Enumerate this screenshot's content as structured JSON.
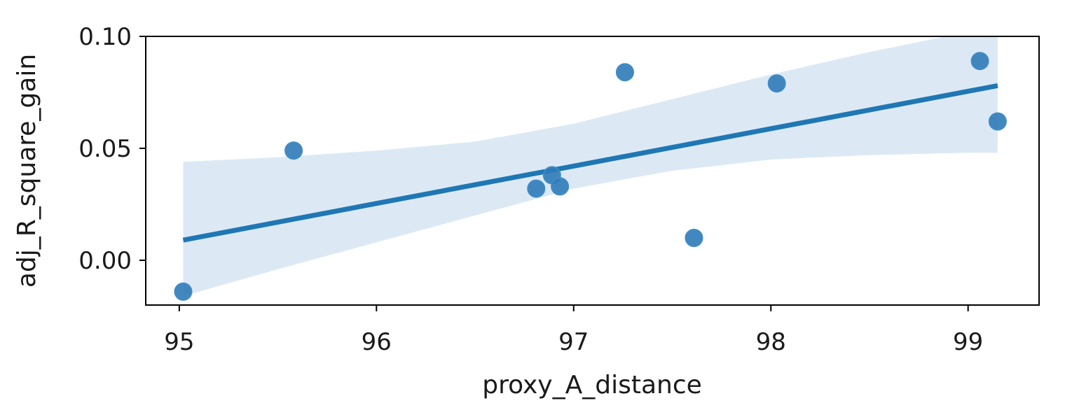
{
  "chart_data": {
    "type": "scatter",
    "xlabel": "proxy_A_distance",
    "ylabel": "adj_R_square_gain",
    "xlim": [
      94.83,
      99.36
    ],
    "ylim": [
      -0.02,
      0.1
    ],
    "xticks": [
      95,
      96,
      97,
      98,
      99
    ],
    "xtick_labels": [
      "95",
      "96",
      "97",
      "98",
      "99"
    ],
    "yticks": [
      0.0,
      0.05,
      0.1
    ],
    "ytick_labels": [
      "0.00",
      "0.05",
      "0.10"
    ],
    "grid": false,
    "points": [
      {
        "x": 95.02,
        "y": -0.014
      },
      {
        "x": 95.58,
        "y": 0.049
      },
      {
        "x": 96.81,
        "y": 0.032
      },
      {
        "x": 96.89,
        "y": 0.038
      },
      {
        "x": 96.93,
        "y": 0.033
      },
      {
        "x": 97.26,
        "y": 0.084
      },
      {
        "x": 97.61,
        "y": 0.01
      },
      {
        "x": 98.03,
        "y": 0.079
      },
      {
        "x": 99.06,
        "y": 0.089
      },
      {
        "x": 99.15,
        "y": 0.062
      }
    ],
    "regression_line": {
      "x": [
        95.02,
        99.15
      ],
      "y": [
        0.009,
        0.078
      ]
    },
    "confidence_band": {
      "x": [
        95.02,
        95.5,
        96.0,
        96.5,
        97.0,
        97.5,
        98.0,
        98.5,
        99.0,
        99.15
      ],
      "lower": [
        -0.016,
        -0.004,
        0.008,
        0.02,
        0.032,
        0.04,
        0.045,
        0.047,
        0.048,
        0.048
      ],
      "upper": [
        0.044,
        0.046,
        0.049,
        0.053,
        0.061,
        0.072,
        0.083,
        0.093,
        0.102,
        0.105
      ]
    },
    "colors": {
      "points": "#2f7ab8",
      "line": "#1f77b4",
      "band": "#dce9f5",
      "axes": "#000000"
    }
  }
}
